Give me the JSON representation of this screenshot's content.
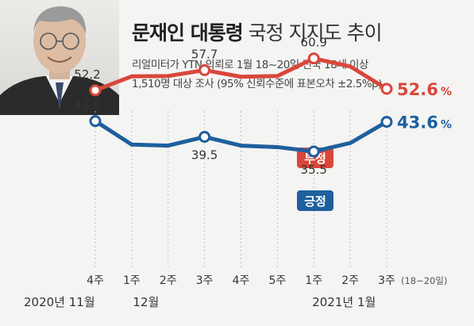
{
  "header": {
    "title_bold": "문재인 대통령",
    "title_rest": "국정 지지도 추이",
    "subtitle_line1": "리얼미터가 YTN 의뢰로 1월 18~20일 전국 18세 이상",
    "subtitle_line2": "1,510명 대상 조사 (95% 신뢰수준에 표본오차 ±2.5%p)"
  },
  "colors": {
    "negative": "#d9473a",
    "positive": "#1e5f9e",
    "grid": "#bdbdbd"
  },
  "chart_data": {
    "type": "line",
    "categories": [
      "4주",
      "1주",
      "2주",
      "3주",
      "4주",
      "5주",
      "1주",
      "2주",
      "3주"
    ],
    "category_note": "(18~20일)",
    "month_labels": [
      {
        "label": "2020년 11월",
        "index": 0
      },
      {
        "label": "12월",
        "index": 1
      },
      {
        "label": "2021년 1월",
        "index": 6
      }
    ],
    "ylim": [
      30,
      66
    ],
    "series": [
      {
        "name": "부정",
        "values": [
          52.2,
          56.0,
          56.1,
          57.7,
          55.9,
          56.1,
          60.9,
          58.7,
          52.6
        ],
        "labels": [
          {
            "index": 0,
            "text": "52.2"
          },
          {
            "index": 3,
            "text": "57.7"
          },
          {
            "index": 6,
            "text": "60.9"
          }
        ],
        "final_value": "52.6",
        "final_unit": "%"
      },
      {
        "name": "긍정",
        "values": [
          43.8,
          37.4,
          37.1,
          39.5,
          37.1,
          36.7,
          35.5,
          37.8,
          43.6
        ],
        "labels": [
          {
            "index": 0,
            "text": "43.8"
          },
          {
            "index": 3,
            "text": "39.5"
          },
          {
            "index": 6,
            "text": "35.5"
          }
        ],
        "final_value": "43.6",
        "final_unit": "%"
      }
    ]
  }
}
